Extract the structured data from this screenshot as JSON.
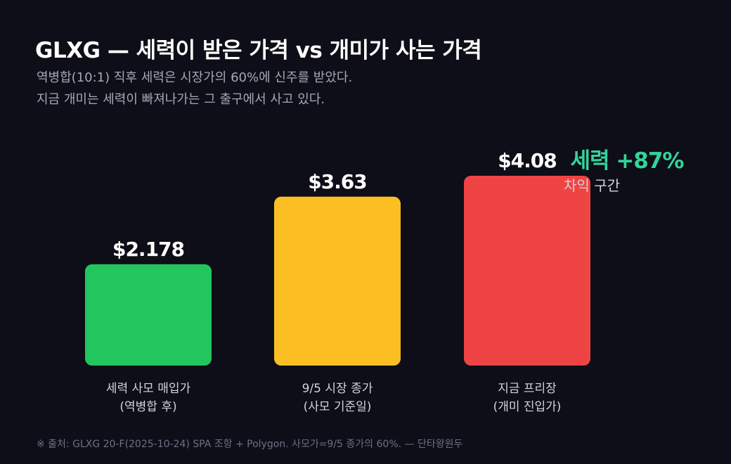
{
  "header": {
    "title": "GLXG — 세력이 받은 가격 vs 개미가 사는 가격",
    "subtitle_lines": [
      "역병합(10:1) 직후 세력은 시장가의 60%에 신주를 받았다.",
      "지금 개미는 세력이 빠져나가는 그 출구에서 사고 있다."
    ]
  },
  "chart_data": {
    "type": "bar",
    "categories": [
      [
        "세력 사모 매입가",
        "(역병합 후)"
      ],
      [
        "9/5 시장 종가",
        "(사모 기준일)"
      ],
      [
        "지금 프리장",
        "(개미 진입가)"
      ]
    ],
    "values": [
      2.178,
      3.63,
      4.08
    ],
    "value_labels": [
      "$2.178",
      "$3.63",
      "$4.08"
    ],
    "colors": [
      "#22c55e",
      "#fbbf24",
      "#ef4444"
    ],
    "annotation": {
      "label": "세력 +87%",
      "sublabel": "차익 구간",
      "color": "#34d399",
      "sublabel_color": "#d1d5db"
    }
  },
  "footer": {
    "note": "※ 출처: GLXG 20-F(2025-10-24) SPA 조항 + Polygon. 사모가=9/5 종가의 60%. — 단타왕원두"
  }
}
